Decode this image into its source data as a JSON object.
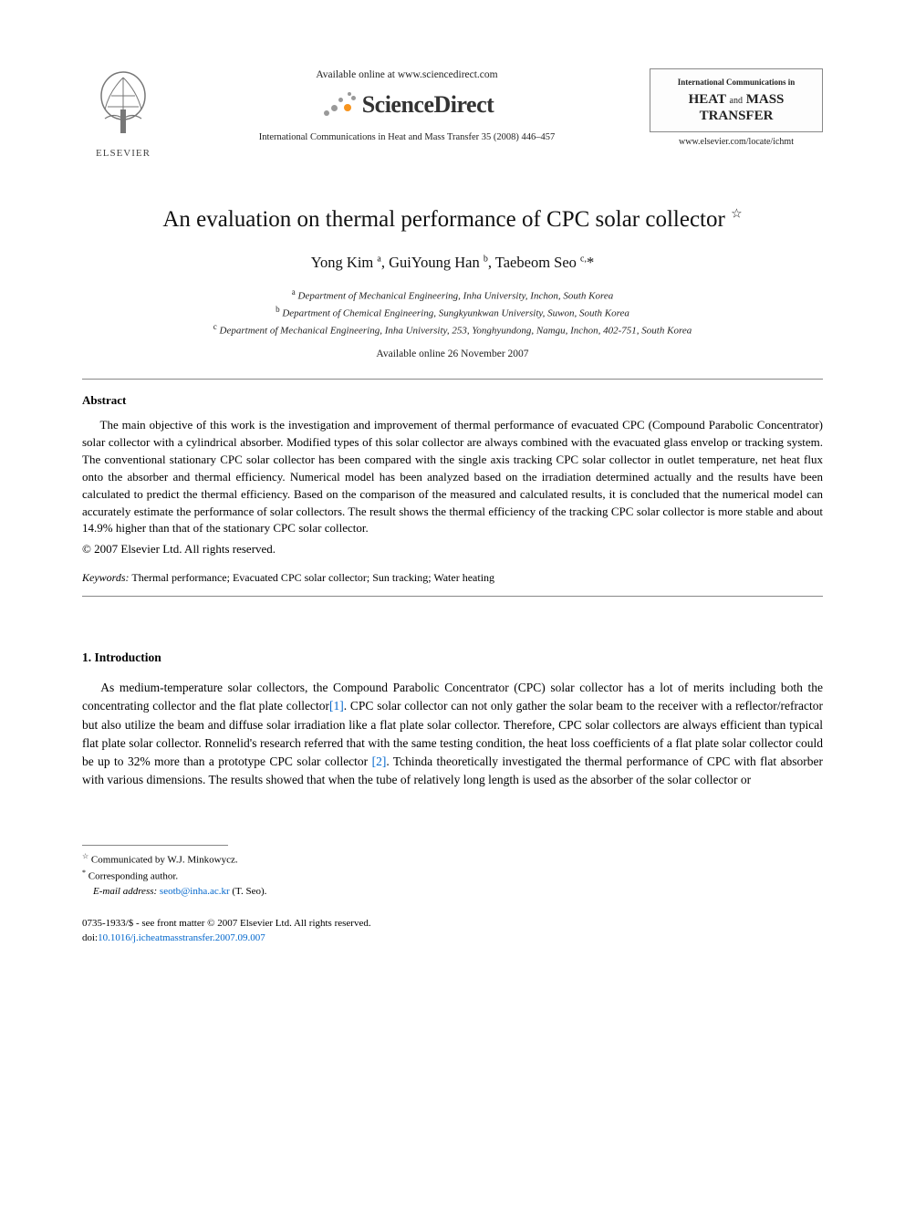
{
  "header": {
    "elsevier_label": "ELSEVIER",
    "available_online": "Available online at www.sciencedirect.com",
    "sciencedirect": "ScienceDirect",
    "journal_ref": "International Communications in Heat and Mass Transfer 35 (2008) 446–457",
    "journal_box_line1": "International Communications in",
    "journal_box_line2a": "HEAT",
    "journal_box_and": "and",
    "journal_box_line2b": "MASS",
    "journal_box_line3": "TRANSFER",
    "journal_url": "www.elsevier.com/locate/ichmt"
  },
  "article": {
    "title": "An evaluation on thermal performance of CPC solar collector",
    "title_star": "☆",
    "authors_html": "Yong Kim <sup>a</sup>, GuiYoung Han <sup>b</sup>, Taebeom Seo <sup>c,</sup>*",
    "affiliations": [
      "<sup>a</sup> Department of Mechanical Engineering, Inha University, Inchon, South Korea",
      "<sup>b</sup> Department of Chemical Engineering, Sungkyunkwan University, Suwon, South Korea",
      "<sup>c</sup> Department of Mechanical Engineering, Inha University, 253, Yonghyundong, Namgu, Inchon, 402-751, South Korea"
    ],
    "available_date": "Available online 26 November 2007"
  },
  "abstract": {
    "heading": "Abstract",
    "text": "The main objective of this work is the investigation and improvement of thermal performance of evacuated CPC (Compound Parabolic Concentrator) solar collector with a cylindrical absorber. Modified types of this solar collector are always combined with the evacuated glass envelop or tracking system. The conventional stationary CPC solar collector has been compared with the single axis tracking CPC solar collector in outlet temperature, net heat flux onto the absorber and thermal efficiency. Numerical model has been analyzed based on the irradiation determined actually and the results have been calculated to predict the thermal efficiency. Based on the comparison of the measured and calculated results, it is concluded that the numerical model can accurately estimate the performance of solar collectors. The result shows the thermal efficiency of the tracking CPC solar collector is more stable and about 14.9% higher than that of the stationary CPC solar collector.",
    "copyright": "© 2007 Elsevier Ltd. All rights reserved."
  },
  "keywords": {
    "label": "Keywords:",
    "text": "Thermal performance; Evacuated CPC solar collector; Sun tracking; Water heating"
  },
  "section1": {
    "heading": "1. Introduction",
    "para1_pre": "As medium-temperature solar collectors, the Compound Parabolic Concentrator (CPC) solar collector has a lot of merits including both the concentrating collector and the flat plate collector",
    "cite1": "[1]",
    "para1_mid": ". CPC solar collector can not only gather the solar beam to the receiver with a reflector/refractor but also utilize the beam and diffuse solar irradiation like a flat plate solar collector. Therefore, CPC solar collectors are always efficient than typical flat plate solar collector. Ronnelid's research referred that with the same testing condition, the heat loss coefficients of a flat plate solar collector could be up to 32% more than a prototype CPC solar collector ",
    "cite2": "[2]",
    "para1_post": ". Tchinda theoretically investigated the thermal performance of CPC with flat absorber with various dimensions. The results showed that when the tube of relatively long length is used as the absorber of the solar collector or"
  },
  "footnotes": {
    "communicated": "Communicated by W.J. Minkowycz.",
    "corresponding": "Corresponding author.",
    "email_label": "E-mail address:",
    "email": "seotb@inha.ac.kr",
    "email_suffix": "(T. Seo)."
  },
  "footer": {
    "line1": "0735-1933/$ - see front matter © 2007 Elsevier Ltd. All rights reserved.",
    "doi_label": "doi:",
    "doi": "10.1016/j.icheatmasstransfer.2007.09.007"
  },
  "colors": {
    "text": "#000000",
    "link": "#0066cc",
    "rule": "#888888",
    "background": "#ffffff"
  }
}
